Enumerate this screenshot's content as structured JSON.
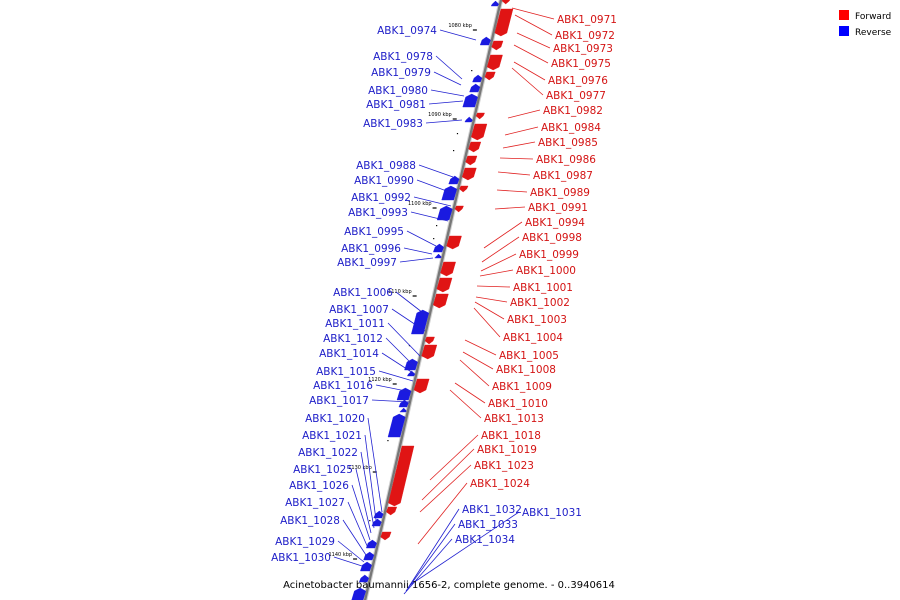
{
  "caption": "Acinetobacter baumannii 1656-2, complete genome. - 0..3940614",
  "legend": [
    {
      "label": "Forward",
      "color": "#ff0000"
    },
    {
      "label": "Reverse",
      "color": "#0000ff"
    }
  ],
  "colors": {
    "forward": "#e01414",
    "reverse": "#1a1ae0",
    "backbone": "#777777"
  },
  "ticks": [
    "1080 kbp",
    "1090 kbp",
    "1100 kbp",
    "1110 kbp",
    "1120 kbp",
    "1130 kbp",
    "1140 kbp"
  ],
  "forward_genes": [
    "ABK1_0971",
    "ABK1_0972",
    "ABK1_0973",
    "ABK1_0975",
    "ABK1_0976",
    "ABK1_0977",
    "ABK1_0982",
    "ABK1_0984",
    "ABK1_0985",
    "ABK1_0986",
    "ABK1_0987",
    "ABK1_0989",
    "ABK1_0991",
    "ABK1_0994",
    "ABK1_0998",
    "ABK1_0999",
    "ABK1_1000",
    "ABK1_1001",
    "ABK1_1002",
    "ABK1_1003",
    "ABK1_1004",
    "ABK1_1005",
    "ABK1_1008",
    "ABK1_1009",
    "ABK1_1010",
    "ABK1_1013",
    "ABK1_1018",
    "ABK1_1019",
    "ABK1_1023",
    "ABK1_1024"
  ],
  "reverse_genes": [
    "ABK1_0974",
    "ABK1_0978",
    "ABK1_0979",
    "ABK1_0980",
    "ABK1_0981",
    "ABK1_0983",
    "ABK1_0988",
    "ABK1_0990",
    "ABK1_0992",
    "ABK1_0993",
    "ABK1_0995",
    "ABK1_0996",
    "ABK1_0997",
    "ABK1_1006",
    "ABK1_1007",
    "ABK1_1011",
    "ABK1_1012",
    "ABK1_1014",
    "ABK1_1015",
    "ABK1_1016",
    "ABK1_1017",
    "ABK1_1020",
    "ABK1_1021",
    "ABK1_1022",
    "ABK1_1025",
    "ABK1_1026",
    "ABK1_1027",
    "ABK1_1028",
    "ABK1_1029",
    "ABK1_1030"
  ],
  "reverse_genes_right": [
    "ABK1_1031",
    "ABK1_1032",
    "ABK1_1033",
    "ABK1_1034"
  ]
}
